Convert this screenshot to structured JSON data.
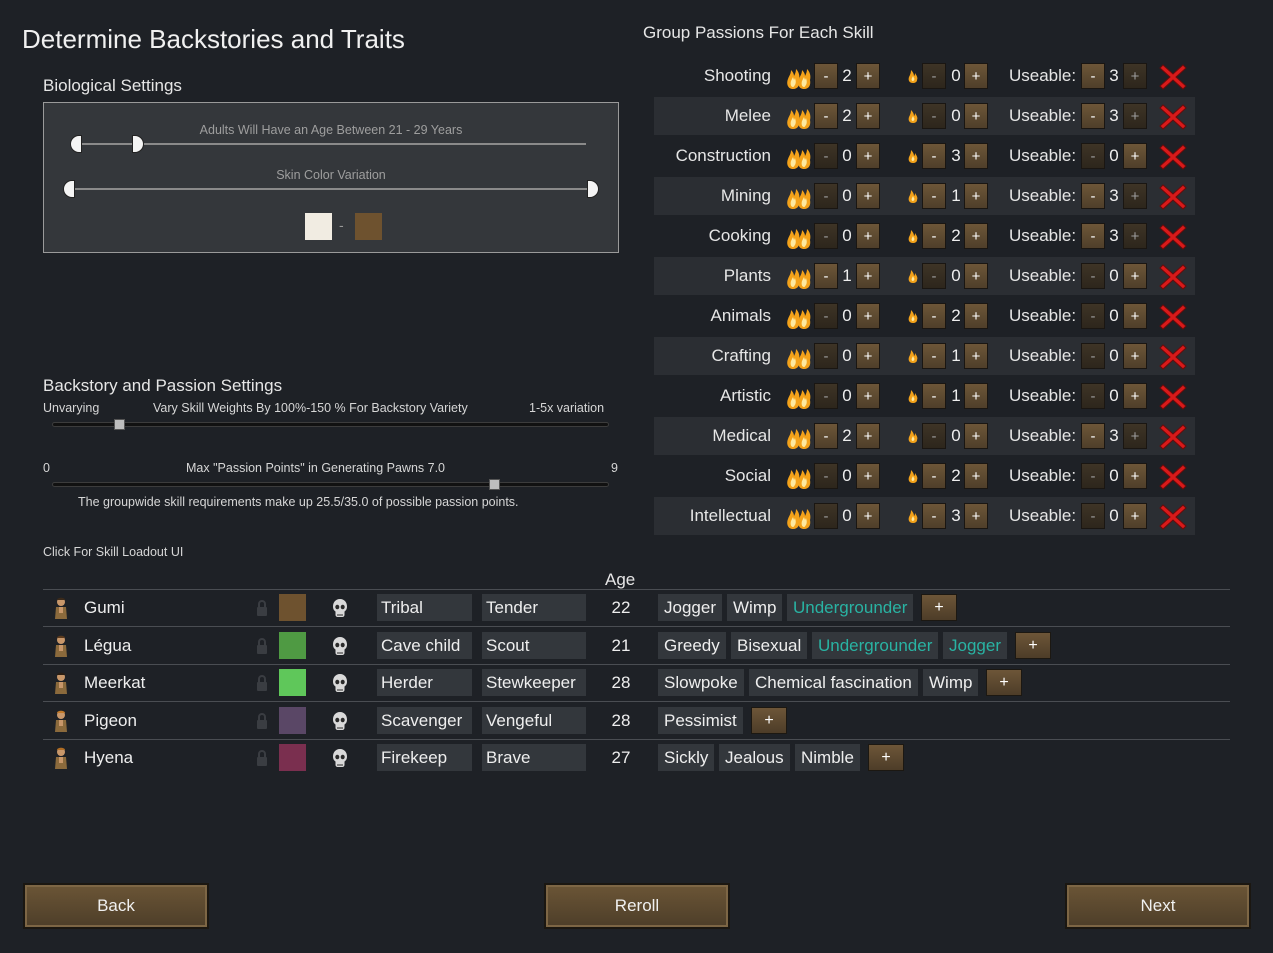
{
  "title": "Determine Backstories and Traits",
  "bio": {
    "heading": "Biological Settings",
    "age_label": "Adults Will Have an Age Between 21 - 29 Years",
    "skin_label": "Skin Color Variation",
    "skin_dash": "-",
    "skin_from": "#f1ece2",
    "skin_to": "#6e522f"
  },
  "backstory": {
    "heading": "Backstory and Passion Settings",
    "left": "Unvarying",
    "middle": "Vary Skill Weights By 100%-150 % For Backstory Variety",
    "right": "1-5x variation",
    "variation_level": 0.12,
    "min": "0",
    "max": "9",
    "passion_label": "Max \"Passion Points\" in Generating Pawns 7.0",
    "passion_value": 7.0,
    "note": "The groupwide skill requirements make up 25.5/35.0 of possible passion points."
  },
  "loadout_link": "Click For Skill Loadout UI",
  "skills_heading": "Group Passions For Each Skill",
  "labels": {
    "useable": "Useable:",
    "minus": "-",
    "plus": "+"
  },
  "skills": [
    {
      "name": "Shooting",
      "major": "2",
      "minor": "0",
      "useable": "3"
    },
    {
      "name": "Melee",
      "major": "2",
      "minor": "0",
      "useable": "3"
    },
    {
      "name": "Construction",
      "major": "0",
      "minor": "3",
      "useable": "0"
    },
    {
      "name": "Mining",
      "major": "0",
      "minor": "1",
      "useable": "3"
    },
    {
      "name": "Cooking",
      "major": "0",
      "minor": "2",
      "useable": "3"
    },
    {
      "name": "Plants",
      "major": "1",
      "minor": "0",
      "useable": "0"
    },
    {
      "name": "Animals",
      "major": "0",
      "minor": "2",
      "useable": "0"
    },
    {
      "name": "Crafting",
      "major": "0",
      "minor": "1",
      "useable": "0"
    },
    {
      "name": "Artistic",
      "major": "0",
      "minor": "1",
      "useable": "0"
    },
    {
      "name": "Medical",
      "major": "2",
      "minor": "0",
      "useable": "3"
    },
    {
      "name": "Social",
      "major": "0",
      "minor": "2",
      "useable": "0"
    },
    {
      "name": "Intellectual",
      "major": "0",
      "minor": "3",
      "useable": "0"
    }
  ],
  "table": {
    "age_header": "Age"
  },
  "pawns": [
    {
      "name": "Gumi",
      "color": "#6e522f",
      "childhood": "Tribal",
      "adulthood": "Tender",
      "age": "22",
      "traits": [
        {
          "t": "Jogger"
        },
        {
          "t": "Wimp"
        },
        {
          "t": "Undergrounder",
          "teal": true
        }
      ]
    },
    {
      "name": "Légua",
      "color": "#4f9a43",
      "childhood": "Cave child",
      "adulthood": "Scout",
      "age": "21",
      "traits": [
        {
          "t": "Greedy"
        },
        {
          "t": "Bisexual"
        },
        {
          "t": "Undergrounder",
          "teal": true
        },
        {
          "t": "Jogger",
          "teal": true
        }
      ]
    },
    {
      "name": "Meerkat",
      "color": "#5fc75a",
      "childhood": "Herder",
      "adulthood": "Stewkeeper",
      "age": "28",
      "traits": [
        {
          "t": "Slowpoke"
        },
        {
          "t": "Chemical fascination"
        },
        {
          "t": "Wimp"
        }
      ]
    },
    {
      "name": "Pigeon",
      "color": "#5a4766",
      "childhood": "Scavenger",
      "adulthood": "Vengeful",
      "age": "28",
      "traits": [
        {
          "t": "Pessimist"
        }
      ]
    },
    {
      "name": "Hyena",
      "color": "#7a2f4f",
      "childhood": "Firekeep",
      "adulthood": "Brave",
      "age": "27",
      "traits": [
        {
          "t": "Sickly"
        },
        {
          "t": "Jealous"
        },
        {
          "t": "Nimble"
        }
      ]
    }
  ],
  "buttons": {
    "back": "Back",
    "reroll": "Reroll",
    "next": "Next"
  }
}
